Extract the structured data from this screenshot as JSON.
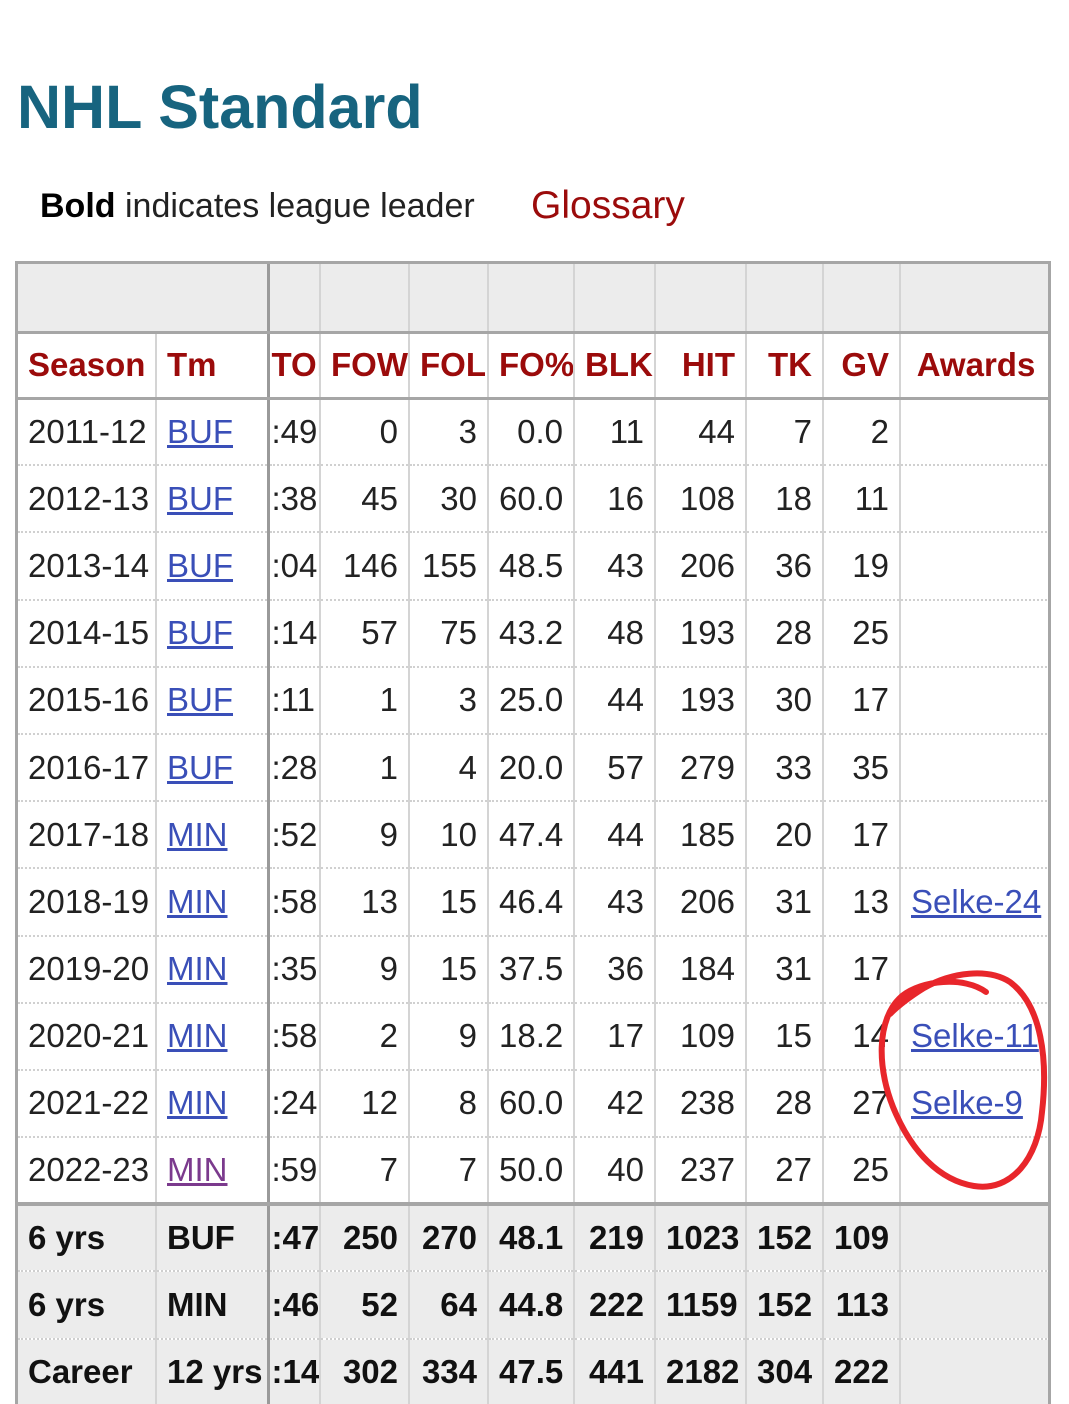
{
  "page": {
    "title": "NHL Standard",
    "legend_bold": "Bold",
    "legend_text": "indicates league leader",
    "glossary_link": "Glossary"
  },
  "table": {
    "columns": [
      "Season",
      "Tm",
      "TOI",
      "FOW",
      "FOL",
      "FO%",
      "BLK",
      "HIT",
      "TK",
      "GV",
      "Awards"
    ],
    "rows": [
      {
        "season": "2011-12",
        "tm": "BUF",
        "toi": ":49",
        "fow": "0",
        "fol": "3",
        "fo_pct": "0.0",
        "blk": "11",
        "hit": "44",
        "tk": "7",
        "gv": "2",
        "awards": ""
      },
      {
        "season": "2012-13",
        "tm": "BUF",
        "toi": ":38",
        "fow": "45",
        "fol": "30",
        "fo_pct": "60.0",
        "blk": "16",
        "hit": "108",
        "tk": "18",
        "gv": "11",
        "awards": ""
      },
      {
        "season": "2013-14",
        "tm": "BUF",
        "toi": ":04",
        "fow": "146",
        "fol": "155",
        "fo_pct": "48.5",
        "blk": "43",
        "hit": "206",
        "tk": "36",
        "gv": "19",
        "awards": ""
      },
      {
        "season": "2014-15",
        "tm": "BUF",
        "toi": ":14",
        "fow": "57",
        "fol": "75",
        "fo_pct": "43.2",
        "blk": "48",
        "hit": "193",
        "tk": "28",
        "gv": "25",
        "awards": ""
      },
      {
        "season": "2015-16",
        "tm": "BUF",
        "toi": ":11",
        "fow": "1",
        "fol": "3",
        "fo_pct": "25.0",
        "blk": "44",
        "hit": "193",
        "tk": "30",
        "gv": "17",
        "awards": ""
      },
      {
        "season": "2016-17",
        "tm": "BUF",
        "toi": ":28",
        "fow": "1",
        "fol": "4",
        "fo_pct": "20.0",
        "blk": "57",
        "hit": "279",
        "tk": "33",
        "gv": "35",
        "awards": ""
      },
      {
        "season": "2017-18",
        "tm": "MIN",
        "toi": ":52",
        "fow": "9",
        "fol": "10",
        "fo_pct": "47.4",
        "blk": "44",
        "hit": "185",
        "tk": "20",
        "gv": "17",
        "awards": ""
      },
      {
        "season": "2018-19",
        "tm": "MIN",
        "toi": ":58",
        "fow": "13",
        "fol": "15",
        "fo_pct": "46.4",
        "blk": "43",
        "hit": "206",
        "tk": "31",
        "gv": "13",
        "awards": "Selke-24"
      },
      {
        "season": "2019-20",
        "tm": "MIN",
        "toi": ":35",
        "fow": "9",
        "fol": "15",
        "fo_pct": "37.5",
        "blk": "36",
        "hit": "184",
        "tk": "31",
        "gv": "17",
        "awards": ""
      },
      {
        "season": "2020-21",
        "tm": "MIN",
        "toi": ":58",
        "fow": "2",
        "fol": "9",
        "fo_pct": "18.2",
        "blk": "17",
        "hit": "109",
        "tk": "15",
        "gv": "14",
        "awards": "Selke-11"
      },
      {
        "season": "2021-22",
        "tm": "MIN",
        "toi": ":24",
        "fow": "12",
        "fol": "8",
        "fo_pct": "60.0",
        "blk": "42",
        "hit": "238",
        "tk": "28",
        "gv": "27",
        "awards": "Selke-9"
      },
      {
        "season": "2022-23",
        "tm": "MIN",
        "toi": ":59",
        "fow": "7",
        "fol": "7",
        "fo_pct": "50.0",
        "blk": "40",
        "hit": "237",
        "tk": "27",
        "gv": "25",
        "awards": ""
      }
    ],
    "totals": [
      {
        "season": "6 yrs",
        "tm": "BUF",
        "toi": ":47",
        "fow": "250",
        "fol": "270",
        "fo_pct": "48.1",
        "blk": "219",
        "hit": "1023",
        "tk": "152",
        "gv": "109",
        "awards": ""
      },
      {
        "season": "6 yrs",
        "tm": "MIN",
        "toi": ":46",
        "fow": "52",
        "fol": "64",
        "fo_pct": "44.8",
        "blk": "222",
        "hit": "1159",
        "tk": "152",
        "gv": "113",
        "awards": ""
      },
      {
        "season": "Career",
        "tm": "12 yrs",
        "toi": ":14",
        "fow": "302",
        "fol": "334",
        "fo_pct": "47.5",
        "blk": "441",
        "hit": "2182",
        "tk": "304",
        "gv": "222",
        "awards": ""
      }
    ]
  },
  "colors": {
    "title": "#17647f",
    "header_text": "#9b0b0b",
    "link": "#3a4fb8",
    "visited_link": "#7b3a8d",
    "annotation": "#e8262b"
  }
}
